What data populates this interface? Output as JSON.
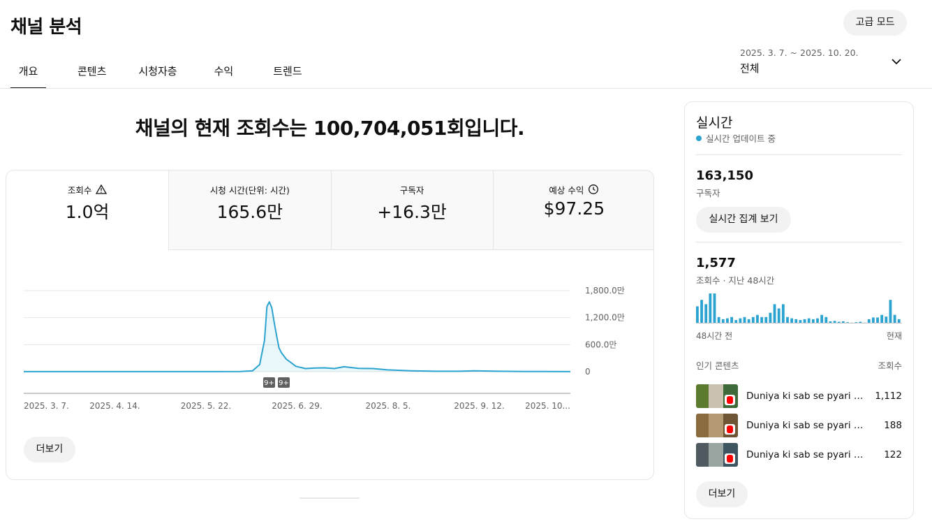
{
  "header": {
    "title": "채널 분석",
    "advanced_mode": "고급 모드",
    "tabs": [
      "개요",
      "콘텐츠",
      "시청자층",
      "수익",
      "트렌드"
    ],
    "date_range": "2025. 3. 7. ~ 2025. 10. 20.",
    "date_label": "전체"
  },
  "headline": "채널의 현재 조회수는 100,704,051회입니다.",
  "metrics": [
    {
      "label": "조회수",
      "value": "1.0억",
      "icon": "warning-icon"
    },
    {
      "label": "시청 시간(단위: 시간)",
      "value": "165.6만"
    },
    {
      "label": "구독자",
      "value": "+16.3만"
    },
    {
      "label": "예상 수익",
      "value": "$97.25",
      "icon": "clock-icon"
    }
  ],
  "chart_data": {
    "type": "line",
    "y_tick_labels": [
      "1,800.0만",
      "1,200.0만",
      "600.0만",
      "0"
    ],
    "x_tick_labels": [
      "2025. 3. 7.",
      "2025. 4. 14.",
      "2025. 5. 22.",
      "2025. 6. 29.",
      "2025. 8. 5.",
      "2025. 9. 12.",
      "2025. 10..."
    ],
    "ylim": [
      0,
      1800
    ],
    "unit": "만",
    "series_color": "#2ba3d0",
    "markers": [
      "9+",
      "9+"
    ],
    "x": [
      "2025-03-07",
      "2025-03-17",
      "2025-03-27",
      "2025-04-06",
      "2025-04-16",
      "2025-04-26",
      "2025-05-06",
      "2025-05-16",
      "2025-05-26",
      "2025-06-05",
      "2025-06-10",
      "2025-06-13",
      "2025-06-15",
      "2025-06-16",
      "2025-06-17",
      "2025-06-18",
      "2025-06-19",
      "2025-06-20",
      "2025-06-21",
      "2025-06-22",
      "2025-06-24",
      "2025-06-26",
      "2025-06-28",
      "2025-07-02",
      "2025-07-06",
      "2025-07-10",
      "2025-07-14",
      "2025-07-18",
      "2025-07-24",
      "2025-07-30",
      "2025-08-05",
      "2025-08-15",
      "2025-08-25",
      "2025-09-04",
      "2025-09-10",
      "2025-09-20",
      "2025-10-01",
      "2025-10-10",
      "2025-10-20"
    ],
    "values": [
      2,
      2,
      2,
      2,
      2,
      2,
      2,
      2,
      2,
      3,
      20,
      160,
      700,
      1450,
      1550,
      1420,
      1100,
      800,
      530,
      420,
      280,
      200,
      120,
      70,
      80,
      85,
      70,
      110,
      75,
      70,
      40,
      20,
      10,
      10,
      20,
      10,
      4,
      3,
      2
    ]
  },
  "more_label": "더보기",
  "realtime": {
    "title": "실시간",
    "status": "실시간 업데이트 중",
    "subscribers": "163,150",
    "subscribers_label": "구독자",
    "aggregate_button": "실시간 집계 보기",
    "views": "1,577",
    "views_label": "조회수 · 지난 48시간",
    "bars": [
      40,
      55,
      45,
      70,
      70,
      15,
      10,
      12,
      15,
      8,
      12,
      15,
      10,
      15,
      20,
      15,
      15,
      25,
      45,
      35,
      45,
      15,
      12,
      10,
      8,
      10,
      12,
      10,
      12,
      20,
      15,
      5,
      6,
      4,
      5,
      3,
      2,
      3,
      4,
      2,
      10,
      14,
      14,
      20,
      16,
      55,
      20,
      10
    ],
    "axis_left": "48시간 전",
    "axis_right": "현재",
    "top_content_label": "인기 콘텐츠",
    "top_views_label": "조회수",
    "top_content": [
      {
        "title": "Duniya ki sab se pyari aw...",
        "views": "1,112"
      },
      {
        "title": "Duniya ki sab se pyari awa...",
        "views": "188"
      },
      {
        "title": "Duniya ki sab se pyari awa...",
        "views": "122"
      }
    ],
    "more_label": "더보기"
  }
}
